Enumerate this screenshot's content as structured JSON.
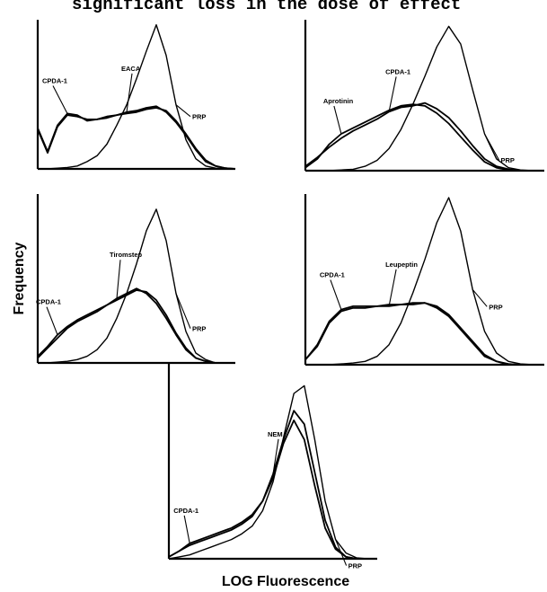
{
  "header_text": "significant loss in the dose of effect",
  "xlabel": "LOG Fluorescence",
  "ylabel": "Frequency",
  "chart_data": [
    {
      "type": "line",
      "xlabel": "LOG Fluorescence",
      "ylabel": "Frequency",
      "x": [
        0,
        0.05,
        0.1,
        0.15,
        0.2,
        0.25,
        0.3,
        0.35,
        0.4,
        0.45,
        0.5,
        0.55,
        0.6,
        0.65,
        0.7,
        0.75,
        0.8,
        0.85,
        0.9,
        0.95,
        1
      ],
      "series": [
        {
          "name": "PRP",
          "values": [
            0,
            0,
            0.005,
            0.01,
            0.02,
            0.05,
            0.09,
            0.17,
            0.3,
            0.44,
            0.62,
            0.81,
            0.99,
            0.78,
            0.44,
            0.2,
            0.07,
            0.02,
            0.005,
            0,
            0
          ]
        },
        {
          "name": "CPDA-1",
          "values": [
            0.28,
            0.12,
            0.3,
            0.38,
            0.37,
            0.33,
            0.34,
            0.35,
            0.37,
            0.38,
            0.39,
            0.41,
            0.42,
            0.4,
            0.33,
            0.24,
            0.14,
            0.06,
            0.02,
            0.005,
            0
          ]
        },
        {
          "name": "EACA",
          "values": [
            0.27,
            0.11,
            0.29,
            0.37,
            0.36,
            0.34,
            0.34,
            0.36,
            0.37,
            0.39,
            0.4,
            0.42,
            0.43,
            0.39,
            0.32,
            0.23,
            0.13,
            0.05,
            0.02,
            0.005,
            0
          ]
        }
      ],
      "annotations": [
        "CPDA-1",
        "EACA",
        "PRP"
      ]
    },
    {
      "type": "line",
      "xlabel": "LOG Fluorescence",
      "ylabel": "Frequency",
      "x": [
        0,
        0.05,
        0.1,
        0.15,
        0.2,
        0.25,
        0.3,
        0.35,
        0.4,
        0.45,
        0.5,
        0.55,
        0.6,
        0.65,
        0.7,
        0.75,
        0.8,
        0.85,
        0.9,
        0.95,
        1
      ],
      "series": [
        {
          "name": "PRP",
          "values": [
            0,
            0,
            0,
            0.005,
            0.01,
            0.03,
            0.07,
            0.15,
            0.28,
            0.45,
            0.64,
            0.84,
            0.98,
            0.86,
            0.55,
            0.25,
            0.08,
            0.02,
            0.005,
            0,
            0
          ]
        },
        {
          "name": "CPDA-1",
          "values": [
            0.03,
            0.09,
            0.16,
            0.22,
            0.27,
            0.31,
            0.35,
            0.4,
            0.43,
            0.44,
            0.46,
            0.42,
            0.36,
            0.27,
            0.17,
            0.08,
            0.03,
            0.01,
            0,
            0,
            0
          ]
        },
        {
          "name": "Aprotinin",
          "values": [
            0.02,
            0.08,
            0.18,
            0.25,
            0.29,
            0.33,
            0.37,
            0.41,
            0.44,
            0.45,
            0.44,
            0.39,
            0.32,
            0.23,
            0.14,
            0.06,
            0.02,
            0.005,
            0,
            0,
            0
          ]
        }
      ],
      "annotations": [
        "Aprotinin",
        "CPDA-1",
        "PRP"
      ]
    },
    {
      "type": "line",
      "xlabel": "LOG Fluorescence",
      "ylabel": "Frequency",
      "x": [
        0,
        0.05,
        0.1,
        0.15,
        0.2,
        0.25,
        0.3,
        0.35,
        0.4,
        0.45,
        0.5,
        0.55,
        0.6,
        0.65,
        0.7,
        0.75,
        0.8,
        0.85,
        0.9,
        0.95,
        1
      ],
      "series": [
        {
          "name": "PRP",
          "values": [
            0,
            0,
            0.005,
            0.01,
            0.02,
            0.04,
            0.08,
            0.15,
            0.27,
            0.42,
            0.6,
            0.8,
            0.93,
            0.74,
            0.42,
            0.19,
            0.06,
            0.02,
            0,
            0,
            0
          ]
        },
        {
          "name": "CPDA-1",
          "values": [
            0.04,
            0.1,
            0.17,
            0.22,
            0.26,
            0.29,
            0.32,
            0.35,
            0.38,
            0.41,
            0.44,
            0.43,
            0.38,
            0.29,
            0.18,
            0.09,
            0.03,
            0.01,
            0,
            0,
            0
          ]
        },
        {
          "name": "Tiromstep",
          "values": [
            0.03,
            0.09,
            0.15,
            0.21,
            0.25,
            0.28,
            0.31,
            0.35,
            0.39,
            0.42,
            0.45,
            0.42,
            0.36,
            0.27,
            0.17,
            0.08,
            0.03,
            0.01,
            0,
            0,
            0
          ]
        }
      ],
      "annotations": [
        "CPDA-1",
        "Tiromstep",
        "PRP"
      ]
    },
    {
      "type": "line",
      "xlabel": "LOG Fluorescence",
      "ylabel": "Frequency",
      "x": [
        0,
        0.05,
        0.1,
        0.15,
        0.2,
        0.25,
        0.3,
        0.35,
        0.4,
        0.45,
        0.5,
        0.55,
        0.6,
        0.65,
        0.7,
        0.75,
        0.8,
        0.85,
        0.9,
        0.95,
        1
      ],
      "series": [
        {
          "name": "PRP",
          "values": [
            0,
            0,
            0,
            0.005,
            0.01,
            0.02,
            0.05,
            0.12,
            0.25,
            0.43,
            0.63,
            0.85,
            1.0,
            0.8,
            0.45,
            0.2,
            0.07,
            0.02,
            0.005,
            0,
            0
          ]
        },
        {
          "name": "CPDA-1",
          "values": [
            0.03,
            0.12,
            0.26,
            0.33,
            0.35,
            0.35,
            0.35,
            0.36,
            0.36,
            0.37,
            0.37,
            0.35,
            0.3,
            0.22,
            0.14,
            0.06,
            0.02,
            0.005,
            0,
            0,
            0
          ]
        },
        {
          "name": "Leupeptin",
          "values": [
            0.03,
            0.11,
            0.25,
            0.32,
            0.34,
            0.34,
            0.35,
            0.35,
            0.36,
            0.36,
            0.37,
            0.34,
            0.29,
            0.21,
            0.13,
            0.05,
            0.02,
            0,
            0,
            0,
            0
          ]
        }
      ],
      "annotations": [
        "CPDA-1",
        "Leupeptin",
        "PRP"
      ]
    },
    {
      "type": "line",
      "xlabel": "LOG Fluorescence",
      "ylabel": "Frequency",
      "x": [
        0,
        0.05,
        0.1,
        0.15,
        0.2,
        0.25,
        0.3,
        0.35,
        0.4,
        0.45,
        0.5,
        0.55,
        0.6,
        0.65,
        0.7,
        0.75,
        0.8,
        0.85,
        0.9,
        0.95,
        1
      ],
      "series": [
        {
          "name": "PRP",
          "values": [
            0,
            0.01,
            0.02,
            0.04,
            0.06,
            0.08,
            0.1,
            0.13,
            0.17,
            0.25,
            0.4,
            0.63,
            0.86,
            0.9,
            0.62,
            0.3,
            0.1,
            0.03,
            0.005,
            0,
            0
          ]
        },
        {
          "name": "CPDA-1",
          "values": [
            0.01,
            0.04,
            0.08,
            0.1,
            0.12,
            0.14,
            0.16,
            0.19,
            0.23,
            0.3,
            0.42,
            0.6,
            0.72,
            0.62,
            0.38,
            0.16,
            0.05,
            0.01,
            0,
            0,
            0
          ]
        },
        {
          "name": "NEM",
          "values": [
            0.01,
            0.04,
            0.07,
            0.09,
            0.11,
            0.13,
            0.15,
            0.18,
            0.22,
            0.3,
            0.44,
            0.62,
            0.77,
            0.7,
            0.45,
            0.2,
            0.06,
            0.01,
            0,
            0,
            0
          ]
        }
      ],
      "annotations": [
        "CPDA-1",
        "NEM",
        "PRP"
      ]
    }
  ]
}
